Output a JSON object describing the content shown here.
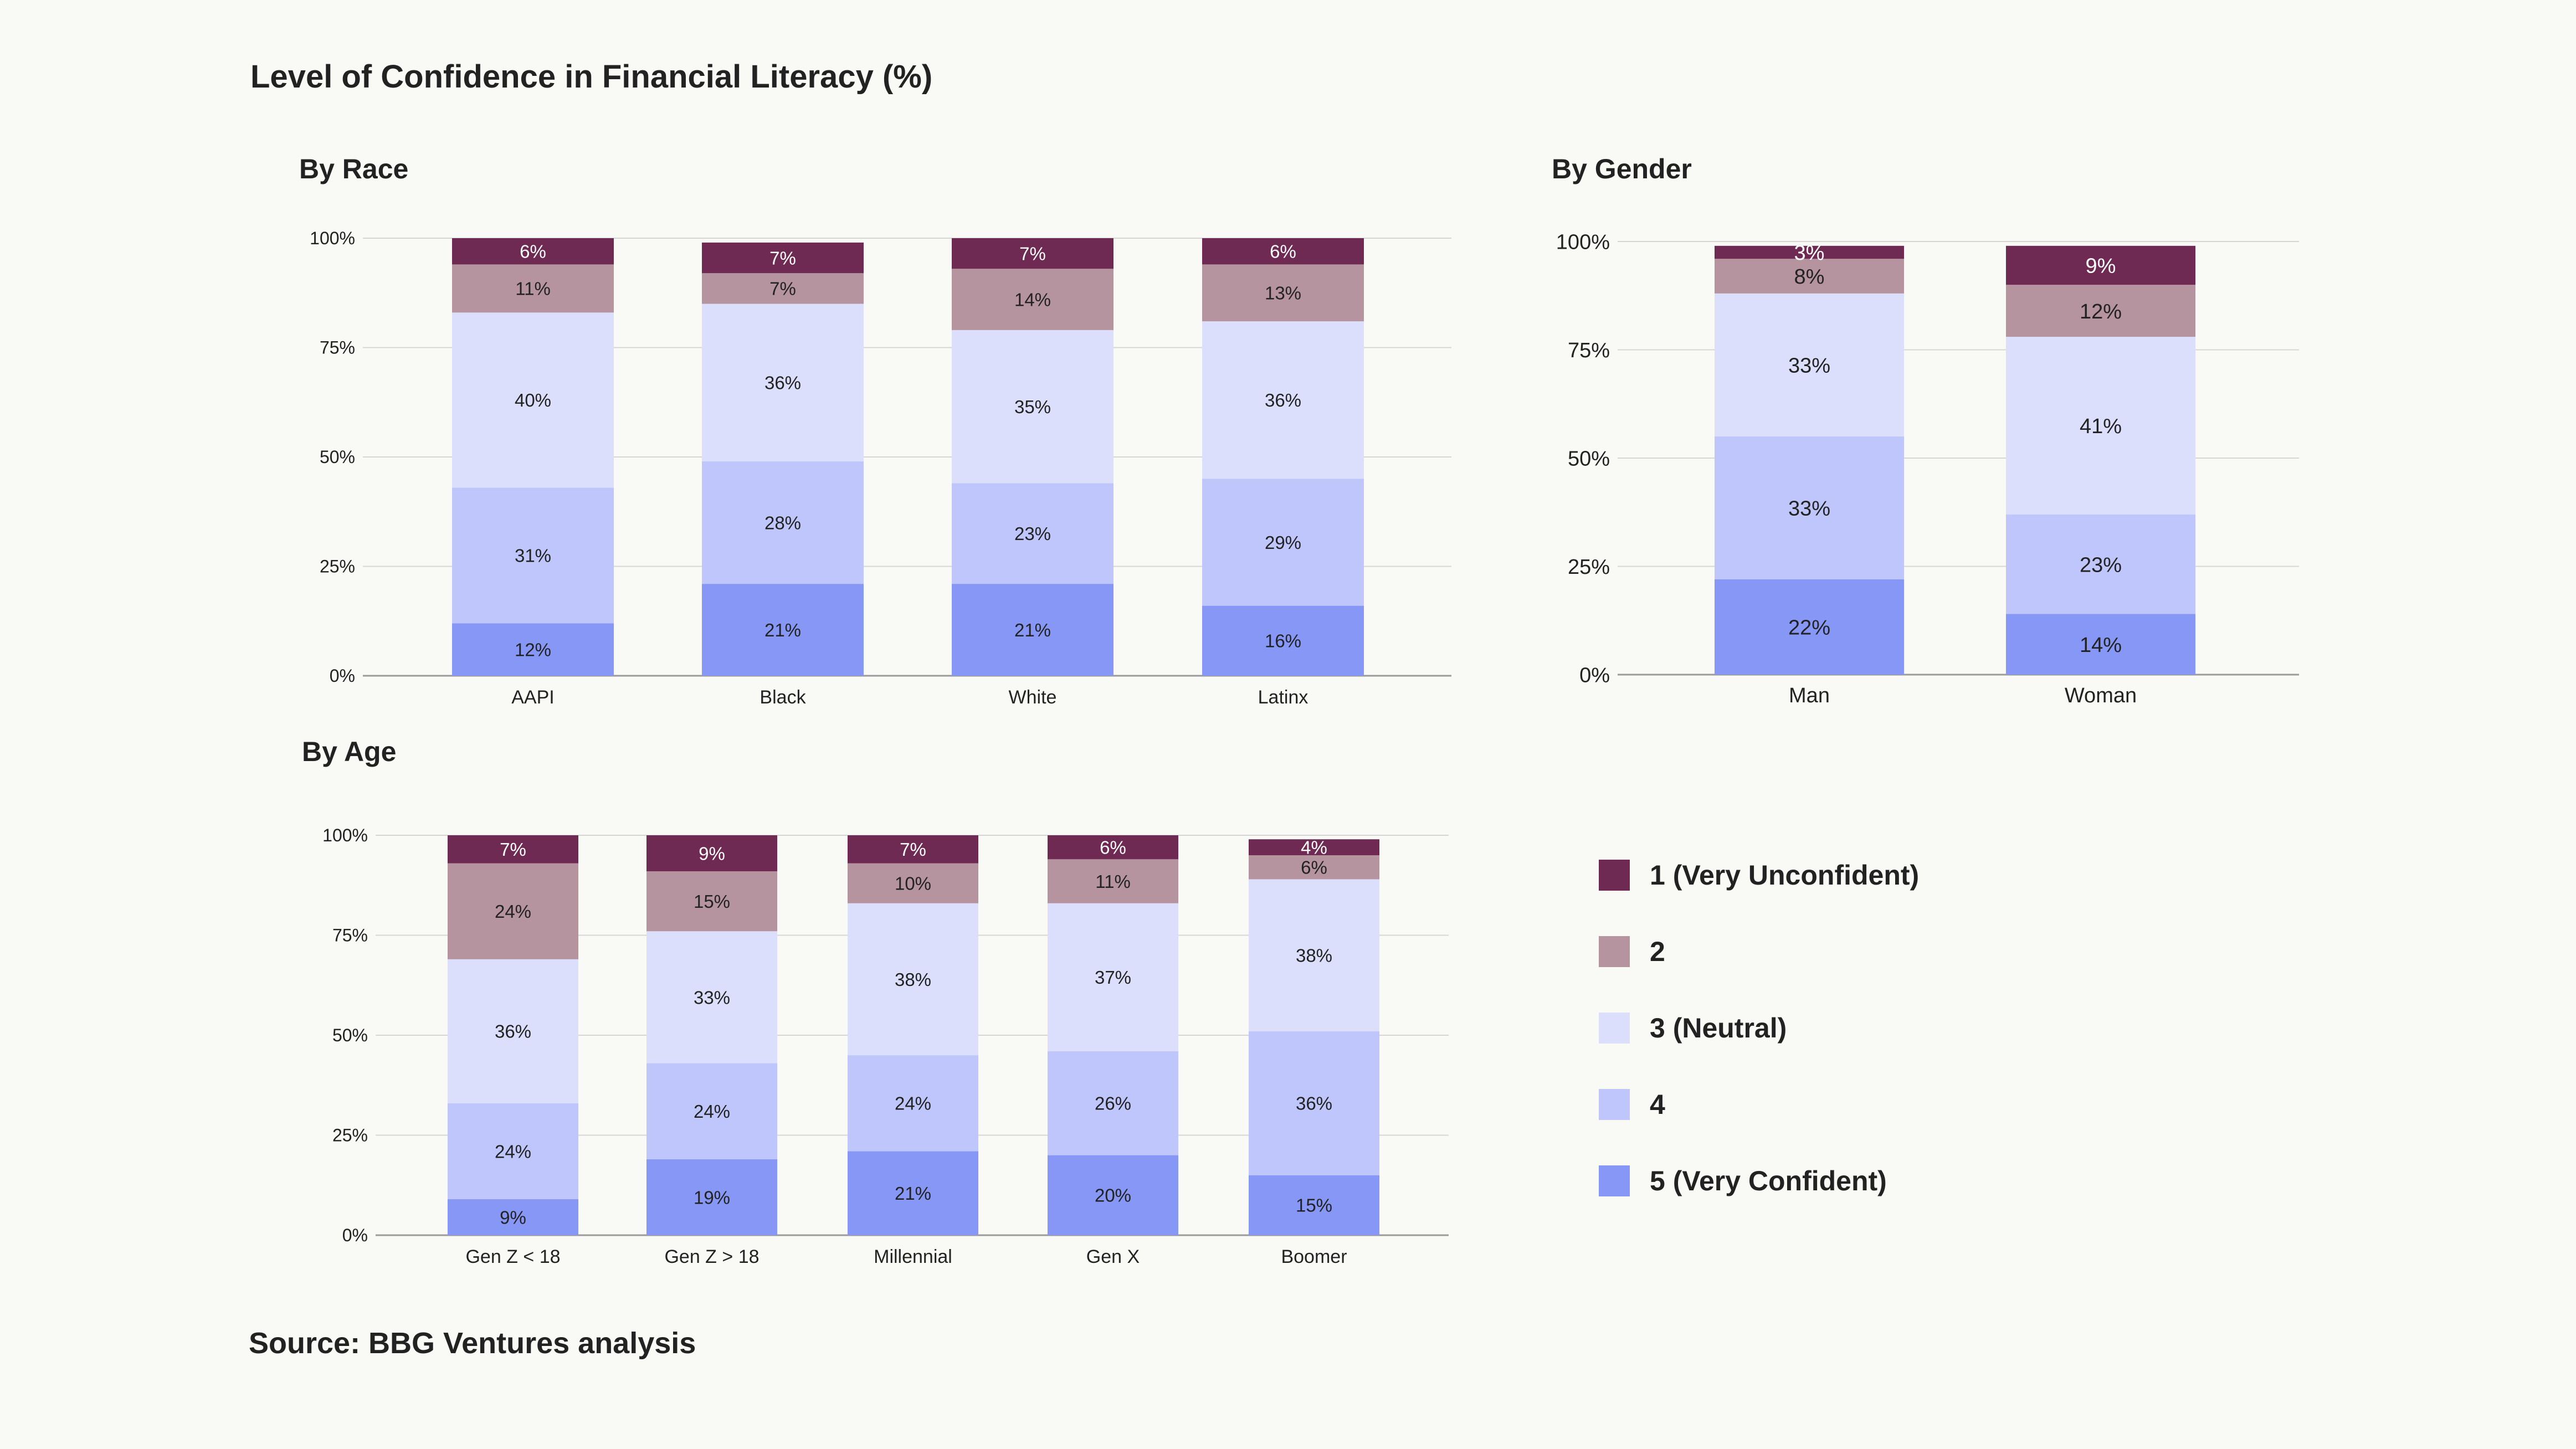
{
  "title": "Level of Confidence in Financial Literacy (%)",
  "source": "Source: BBG Ventures analysis",
  "legend": {
    "items": [
      {
        "label": "1 (Very Unconfident)",
        "color": "#6F2A54"
      },
      {
        "label": "2",
        "color": "#B6949F"
      },
      {
        "label": "3 (Neutral)",
        "color": "#DCDFFB"
      },
      {
        "label": "4",
        "color": "#BEC6FB"
      },
      {
        "label": "5 (Very Confident)",
        "color": "#8697F6"
      }
    ]
  },
  "chart_data": [
    {
      "type": "bar",
      "stacked": true,
      "title": "By Race",
      "categories": [
        "AAPI",
        "Black",
        "White",
        "Latinx"
      ],
      "ylim": [
        0,
        100
      ],
      "yticks": [
        "0%",
        "25%",
        "50%",
        "75%",
        "100%"
      ],
      "series": [
        {
          "name": "5 (Very Confident)",
          "values": [
            12,
            21,
            21,
            16
          ]
        },
        {
          "name": "4",
          "values": [
            31,
            28,
            23,
            29
          ]
        },
        {
          "name": "3 (Neutral)",
          "values": [
            40,
            36,
            35,
            36
          ]
        },
        {
          "name": "2",
          "values": [
            11,
            7,
            14,
            13
          ]
        },
        {
          "name": "1 (Very Unconfident)",
          "values": [
            6,
            7,
            7,
            6
          ]
        }
      ]
    },
    {
      "type": "bar",
      "stacked": true,
      "title": "By Gender",
      "categories": [
        "Man",
        "Woman"
      ],
      "ylim": [
        0,
        100
      ],
      "yticks": [
        "0%",
        "25%",
        "50%",
        "75%",
        "100%"
      ],
      "series": [
        {
          "name": "5 (Very Confident)",
          "values": [
            22,
            14
          ]
        },
        {
          "name": "4",
          "values": [
            33,
            23
          ]
        },
        {
          "name": "3 (Neutral)",
          "values": [
            33,
            41
          ]
        },
        {
          "name": "2",
          "values": [
            8,
            12
          ]
        },
        {
          "name": "1 (Very Unconfident)",
          "values": [
            3,
            9
          ]
        }
      ]
    },
    {
      "type": "bar",
      "stacked": true,
      "title": "By Age",
      "categories": [
        "Gen Z < 18",
        "Gen Z > 18",
        "Millennial",
        "Gen X",
        "Boomer"
      ],
      "ylim": [
        0,
        100
      ],
      "yticks": [
        "0%",
        "25%",
        "50%",
        "75%",
        "100%"
      ],
      "series": [
        {
          "name": "5 (Very Confident)",
          "values": [
            9,
            19,
            21,
            20,
            15
          ]
        },
        {
          "name": "4",
          "values": [
            24,
            24,
            24,
            26,
            36
          ]
        },
        {
          "name": "3 (Neutral)",
          "values": [
            36,
            33,
            38,
            37,
            38
          ]
        },
        {
          "name": "2",
          "values": [
            24,
            15,
            10,
            11,
            6
          ]
        },
        {
          "name": "1 (Very Unconfident)",
          "values": [
            7,
            9,
            7,
            6,
            4
          ]
        }
      ]
    }
  ]
}
